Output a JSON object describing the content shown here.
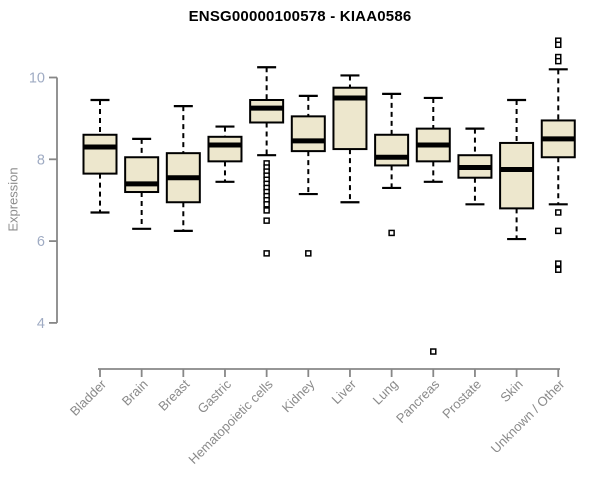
{
  "chart_data": {
    "type": "boxplot",
    "title": "ENSG00000100578 - KIAA0586",
    "ylabel": "Expression",
    "xlabel": "",
    "y_ticks": [
      10,
      8,
      6,
      4
    ],
    "y_axis_range": [
      4,
      10
    ],
    "grid": false,
    "categories": [
      "Bladder",
      "Brain",
      "Breast",
      "Gastric",
      "Hematopoietic cells",
      "Kidney",
      "Liver",
      "Lung",
      "Pancreas",
      "Prostate",
      "Skin",
      "Unknown / Other"
    ],
    "boxes": [
      {
        "label": "Bladder",
        "whisker_low": 6.7,
        "q1": 7.65,
        "median": 8.3,
        "q3": 8.6,
        "whisker_high": 9.45,
        "outliers": []
      },
      {
        "label": "Brain",
        "whisker_low": 6.3,
        "q1": 7.2,
        "median": 7.4,
        "q3": 8.05,
        "whisker_high": 8.5,
        "outliers": []
      },
      {
        "label": "Breast",
        "whisker_low": 6.25,
        "q1": 6.95,
        "median": 7.55,
        "q3": 8.15,
        "whisker_high": 9.3,
        "outliers": []
      },
      {
        "label": "Gastric",
        "whisker_low": 7.45,
        "q1": 7.95,
        "median": 8.35,
        "q3": 8.55,
        "whisker_high": 8.8,
        "outliers": []
      },
      {
        "label": "Hematopoietic cells",
        "whisker_low": 8.1,
        "q1": 8.9,
        "median": 9.25,
        "q3": 9.45,
        "whisker_high": 10.25,
        "outliers": [
          7.9,
          7.8,
          7.7,
          7.6,
          7.5,
          7.4,
          7.3,
          7.2,
          7.1,
          7.0,
          6.9,
          6.75,
          6.5,
          5.7
        ]
      },
      {
        "label": "Kidney",
        "whisker_low": 7.15,
        "q1": 8.2,
        "median": 8.45,
        "q3": 9.05,
        "whisker_high": 9.55,
        "outliers": [
          5.7
        ]
      },
      {
        "label": "Liver",
        "whisker_low": 6.95,
        "q1": 8.25,
        "median": 9.5,
        "q3": 9.75,
        "whisker_high": 10.05,
        "outliers": []
      },
      {
        "label": "Lung",
        "whisker_low": 7.3,
        "q1": 7.85,
        "median": 8.05,
        "q3": 8.6,
        "whisker_high": 9.6,
        "outliers": [
          6.2
        ]
      },
      {
        "label": "Pancreas",
        "whisker_low": 7.45,
        "q1": 7.95,
        "median": 8.35,
        "q3": 8.75,
        "whisker_high": 9.5,
        "outliers": [
          3.3
        ]
      },
      {
        "label": "Prostate",
        "whisker_low": 6.9,
        "q1": 7.55,
        "median": 7.8,
        "q3": 8.1,
        "whisker_high": 8.75,
        "outliers": []
      },
      {
        "label": "Skin",
        "whisker_low": 6.05,
        "q1": 6.8,
        "median": 7.75,
        "q3": 8.4,
        "whisker_high": 9.45,
        "outliers": []
      },
      {
        "label": "Unknown / Other",
        "whisker_low": 6.9,
        "q1": 8.05,
        "median": 8.5,
        "q3": 8.95,
        "whisker_high": 10.2,
        "outliers": [
          10.9,
          10.8,
          10.5,
          10.4,
          6.7,
          6.25,
          5.45,
          5.3
        ]
      }
    ],
    "colors": {
      "box_fill": "#ede7cd",
      "box_stroke": "#000000",
      "median": "#000000",
      "whisker": "#000000",
      "axis": "#878787",
      "y_tick_label": "#9fabc3",
      "x_tick_label": "#8a8a8a",
      "title": "#000000",
      "outlier_fill": "#ffffff"
    }
  }
}
